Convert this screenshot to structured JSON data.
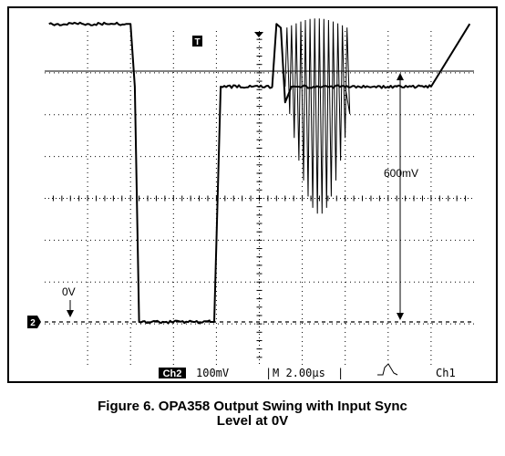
{
  "chart_data": {
    "type": "line",
    "title": "",
    "xlabel": "",
    "ylabel": "",
    "timebase_per_div": "2.00µs",
    "volts_per_div": "100mV",
    "grid": true,
    "series": [
      {
        "name": "Ch2",
        "x_us": [
          -9.8,
          -7.4,
          -6.2,
          -6.0,
          -5.8,
          -5.6,
          -4.0,
          -3.0,
          -2.3,
          -2.1,
          -1.8,
          0.6,
          0.8,
          1.0,
          1.2,
          1.5,
          3.5,
          4.0,
          6.4,
          8.0,
          9.8
        ],
        "y_mV": [
          760,
          760,
          760,
          760,
          600,
          0,
          0,
          0,
          0,
          0,
          600,
          600,
          760,
          750,
          560,
          600,
          600,
          600,
          600,
          600,
          760
        ]
      }
    ],
    "annotations": {
      "amplitude": "600mV",
      "zero_level": "0V",
      "trigger_marker": "T",
      "channel_marker": "2"
    },
    "status_bar": {
      "channel": "Ch2",
      "scale": "100mV",
      "timebase": "M 2.00µs",
      "trigger_source": "Ch1"
    }
  },
  "caption": {
    "line1": "Figure 6. OPA358 Output Swing with Input Sync",
    "line2": "Level at 0V"
  }
}
